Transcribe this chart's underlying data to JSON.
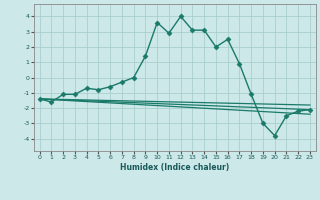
{
  "xlabel": "Humidex (Indice chaleur)",
  "background_color": "#cce8e8",
  "grid_color": "#aacece",
  "line_color": "#1a7a6a",
  "xlim": [
    -0.5,
    23.5
  ],
  "ylim": [
    -4.8,
    4.8
  ],
  "xticks": [
    0,
    1,
    2,
    3,
    4,
    5,
    6,
    7,
    8,
    9,
    10,
    11,
    12,
    13,
    14,
    15,
    16,
    17,
    18,
    19,
    20,
    21,
    22,
    23
  ],
  "yticks": [
    -4,
    -3,
    -2,
    -1,
    0,
    1,
    2,
    3,
    4
  ],
  "series": [
    {
      "x": [
        0,
        1,
        2,
        3,
        4,
        5,
        6,
        7,
        8,
        9,
        10,
        11,
        12,
        13,
        14,
        15,
        16,
        17,
        18,
        19,
        20,
        21,
        22,
        23
      ],
      "y": [
        -1.4,
        -1.6,
        -1.1,
        -1.1,
        -0.7,
        -0.8,
        -0.6,
        -0.3,
        0.0,
        1.4,
        3.6,
        2.9,
        4.0,
        3.1,
        3.1,
        2.0,
        2.5,
        0.9,
        -1.1,
        -3.0,
        -3.8,
        -2.5,
        -2.2,
        -2.1
      ],
      "has_marker": true,
      "markersize": 2.5,
      "linewidth": 1.0
    },
    {
      "x": [
        0,
        23
      ],
      "y": [
        -1.4,
        -1.8
      ],
      "has_marker": false,
      "linewidth": 0.9
    },
    {
      "x": [
        0,
        23
      ],
      "y": [
        -1.4,
        -2.1
      ],
      "has_marker": false,
      "linewidth": 0.9
    },
    {
      "x": [
        0,
        23
      ],
      "y": [
        -1.4,
        -2.4
      ],
      "has_marker": false,
      "linewidth": 0.9
    }
  ]
}
